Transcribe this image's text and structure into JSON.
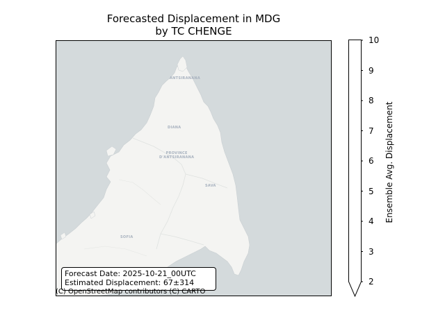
{
  "title": {
    "line1": "Forecasted Displacement in MDG",
    "line2": "by TC CHENGE"
  },
  "map": {
    "sea_color": "#d4dadc",
    "land_color": "#f4f4f2",
    "labels": {
      "antsiranana": "ANTSIRANANA",
      "diana": "DIANA",
      "province_line1": "PROVINCE",
      "province_line2": "D'ANTSIRANANA",
      "sava": "SAVA",
      "sofia": "SOFIA"
    },
    "attribution": "(C) OpenStreetMap contributors (C) CARTO"
  },
  "info_box": {
    "forecast_date": "Forecast Date: 2025-10-21_00UTC",
    "estimated_displacement": "Estimated Displacement: 67±314"
  },
  "colorbar": {
    "label": "Ensemble Avg. Displacement",
    "min": 2,
    "max": 10,
    "extend": "min",
    "ticks": [
      "2",
      "3",
      "4",
      "5",
      "6",
      "7",
      "8",
      "9",
      "10"
    ],
    "fill_color": "#ffffff"
  }
}
